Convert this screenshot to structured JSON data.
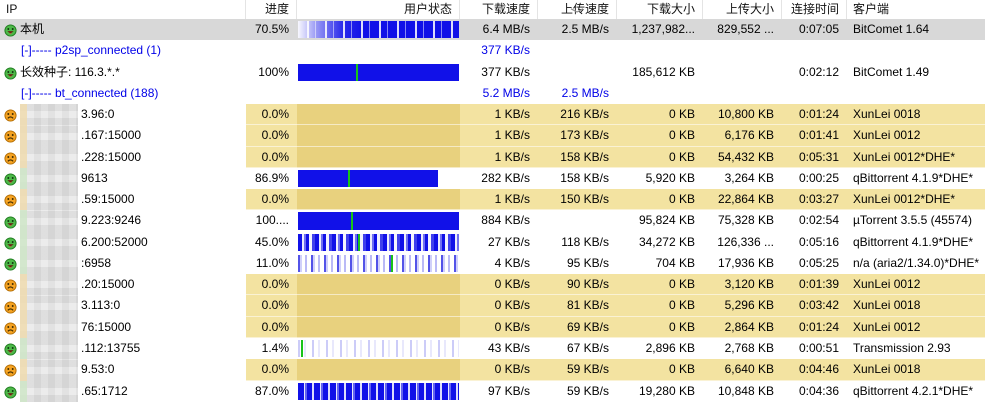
{
  "header": {
    "columns": [
      {
        "id": "ip",
        "label": "IP",
        "align": "left"
      },
      {
        "id": "progress",
        "label": "进度",
        "align": "right"
      },
      {
        "id": "user_status",
        "label": "用户状态",
        "align": "right"
      },
      {
        "id": "download_speed",
        "label": "下载速度",
        "align": "right"
      },
      {
        "id": "upload_speed",
        "label": "上传速度",
        "align": "right"
      },
      {
        "id": "download_size",
        "label": "下载大小",
        "align": "right"
      },
      {
        "id": "upload_size",
        "label": "上传大小",
        "align": "right"
      },
      {
        "id": "connect_time",
        "label": "连接时间",
        "align": "right"
      },
      {
        "id": "client",
        "label": "客户端",
        "align": "left"
      }
    ],
    "sort": {
      "column_id": "upload_speed",
      "direction": "desc"
    }
  },
  "colors": {
    "bar_blue": "#1111e8",
    "marker_green": "#19c319",
    "group_text_blue": "#0000e8",
    "banned_row_yellow": "#f3e3a1",
    "banned_bar_cell_yellow": "#e8d17e",
    "selected_row_gray": "#d8d8d8"
  },
  "rows": [
    {
      "icon": "happy",
      "ip": "本机",
      "masked": false,
      "progress": "70.5%",
      "bar": {
        "kind": "fade",
        "fill": 100,
        "marker": null
      },
      "download_speed": "6.4 MB/s",
      "upload_speed": "2.5 MB/s",
      "download_size": "1,237,982...",
      "upload_size": "829,552 ...",
      "connect_time": "0:07:05",
      "client": "BitComet 1.64",
      "state": "selected",
      "group": false
    },
    {
      "icon": null,
      "ip": "[-]----- p2sp_connected (1)",
      "masked": false,
      "progress": "",
      "bar": null,
      "download_speed": "377 KB/s",
      "upload_speed": "",
      "download_size": "",
      "upload_size": "",
      "connect_time": "",
      "client": "",
      "state": null,
      "group": true
    },
    {
      "icon": "happy",
      "ip": "长效种子: 116.3.*.*",
      "masked": false,
      "progress": "100%",
      "bar": {
        "kind": "solid",
        "fill": 100,
        "marker": 36
      },
      "download_speed": "377 KB/s",
      "upload_speed": "",
      "download_size": "185,612 KB",
      "upload_size": "",
      "connect_time": "0:02:12",
      "client": "BitComet 1.49",
      "state": null,
      "group": false
    },
    {
      "icon": null,
      "ip": "[-]----- bt_connected (188)",
      "masked": false,
      "progress": "",
      "bar": null,
      "download_speed": "5.2 MB/s",
      "upload_speed": "2.5 MB/s",
      "download_size": "",
      "upload_size": "",
      "connect_time": "",
      "client": "",
      "state": null,
      "group": true
    },
    {
      "icon": "sad",
      "ip": "3.96:0",
      "masked": true,
      "tint": "orange",
      "progress": "0.0%",
      "bar": null,
      "download_speed": "1 KB/s",
      "upload_speed": "216 KB/s",
      "download_size": "0 KB",
      "upload_size": "10,800 KB",
      "connect_time": "0:01:24",
      "client": "XunLei 0018",
      "state": "banned",
      "group": false
    },
    {
      "icon": "sad",
      "ip": ".167:15000",
      "masked": true,
      "tint": "orange",
      "progress": "0.0%",
      "bar": null,
      "download_speed": "1 KB/s",
      "upload_speed": "173 KB/s",
      "download_size": "0 KB",
      "upload_size": "6,176 KB",
      "connect_time": "0:01:41",
      "client": "XunLei 0012",
      "state": "banned",
      "group": false
    },
    {
      "icon": "sad",
      "ip": ".228:15000",
      "masked": true,
      "tint": "orange",
      "progress": "0.0%",
      "bar": null,
      "download_speed": "1 KB/s",
      "upload_speed": "158 KB/s",
      "download_size": "0 KB",
      "upload_size": "54,432 KB",
      "connect_time": "0:05:31",
      "client": "XunLei 0012*DHE*",
      "state": "banned",
      "group": false
    },
    {
      "icon": "happy",
      "ip": "9613",
      "masked": true,
      "tint": "green",
      "progress": "86.9%",
      "bar": {
        "kind": "solid",
        "fill": 87,
        "marker": 36
      },
      "download_speed": "282 KB/s",
      "upload_speed": "158 KB/s",
      "download_size": "5,920 KB",
      "upload_size": "3,264 KB",
      "connect_time": "0:00:25",
      "client": "qBittorrent 4.1.9*DHE*",
      "state": null,
      "group": false
    },
    {
      "icon": "sad",
      "ip": ".59:15000",
      "masked": true,
      "tint": "orange",
      "progress": "0.0%",
      "bar": null,
      "download_speed": "1 KB/s",
      "upload_speed": "150 KB/s",
      "download_size": "0 KB",
      "upload_size": "22,864 KB",
      "connect_time": "0:03:27",
      "client": "XunLei 0012*DHE*",
      "state": "banned",
      "group": false
    },
    {
      "icon": "happy",
      "ip": "9.223:9246",
      "masked": true,
      "tint": "green",
      "progress": "100....",
      "bar": {
        "kind": "solid",
        "fill": 100,
        "marker": 33
      },
      "download_speed": "884 KB/s",
      "upload_speed": "",
      "download_size": "95,824 KB",
      "upload_size": "75,328 KB",
      "connect_time": "0:02:54",
      "client": "µTorrent 3.5.5 (45574)",
      "state": null,
      "group": false
    },
    {
      "icon": "happy",
      "ip": "6.200:52000",
      "masked": true,
      "tint": "green",
      "progress": "45.0%",
      "bar": {
        "kind": "medium",
        "fill": 100,
        "marker": 37
      },
      "download_speed": "27 KB/s",
      "upload_speed": "118 KB/s",
      "download_size": "34,272 KB",
      "upload_size": "126,336 ...",
      "connect_time": "0:05:16",
      "client": "qBittorrent 4.1.9*DHE*",
      "state": null,
      "group": false
    },
    {
      "icon": "happy",
      "ip": ":6958",
      "masked": true,
      "tint": "green",
      "progress": "11.0%",
      "bar": {
        "kind": "light",
        "fill": 100,
        "marker": 58
      },
      "download_speed": "4 KB/s",
      "upload_speed": "95 KB/s",
      "download_size": "704 KB",
      "upload_size": "17,936 KB",
      "connect_time": "0:05:25",
      "client": "n/a (aria2/1.34.0)*DHE*",
      "state": null,
      "group": false
    },
    {
      "icon": "sad",
      "ip": ".20:15000",
      "masked": true,
      "tint": "orange",
      "progress": "0.0%",
      "bar": null,
      "download_speed": "0 KB/s",
      "upload_speed": "90 KB/s",
      "download_size": "0 KB",
      "upload_size": "3,120 KB",
      "connect_time": "0:01:39",
      "client": "XunLei 0012",
      "state": "banned",
      "group": false
    },
    {
      "icon": "sad",
      "ip": "3.113:0",
      "masked": true,
      "tint": "orange",
      "progress": "0.0%",
      "bar": null,
      "download_speed": "0 KB/s",
      "upload_speed": "81 KB/s",
      "download_size": "0 KB",
      "upload_size": "5,296 KB",
      "connect_time": "0:03:42",
      "client": "XunLei 0018",
      "state": "banned",
      "group": false
    },
    {
      "icon": "sad",
      "ip": "76:15000",
      "masked": true,
      "tint": "orange",
      "progress": "0.0%",
      "bar": null,
      "download_speed": "0 KB/s",
      "upload_speed": "69 KB/s",
      "download_size": "0 KB",
      "upload_size": "2,864 KB",
      "connect_time": "0:01:24",
      "client": "XunLei 0012",
      "state": "banned",
      "group": false
    },
    {
      "icon": "happy",
      "ip": ".112:13755",
      "masked": true,
      "tint": "green",
      "progress": "1.4%",
      "bar": {
        "kind": "faint",
        "fill": 100,
        "marker": 2
      },
      "download_speed": "43 KB/s",
      "upload_speed": "67 KB/s",
      "download_size": "2,896 KB",
      "upload_size": "2,768 KB",
      "connect_time": "0:00:51",
      "client": "Transmission 2.93",
      "state": null,
      "group": false
    },
    {
      "icon": "sad",
      "ip": "9.53:0",
      "masked": true,
      "tint": "orange",
      "progress": "0.0%",
      "bar": null,
      "download_speed": "0 KB/s",
      "upload_speed": "59 KB/s",
      "download_size": "0 KB",
      "upload_size": "6,640 KB",
      "connect_time": "0:04:46",
      "client": "XunLei 0018",
      "state": "banned",
      "group": false
    },
    {
      "icon": "happy",
      "ip": ".65:1712",
      "masked": true,
      "tint": "green",
      "progress": "87.0%",
      "bar": {
        "kind": "dense",
        "fill": 100,
        "marker": null
      },
      "download_speed": "97 KB/s",
      "upload_speed": "59 KB/s",
      "download_size": "19,280 KB",
      "upload_size": "10,848 KB",
      "connect_time": "0:04:36",
      "client": "qBittorrent 4.2.1*DHE*",
      "state": null,
      "group": false
    }
  ]
}
